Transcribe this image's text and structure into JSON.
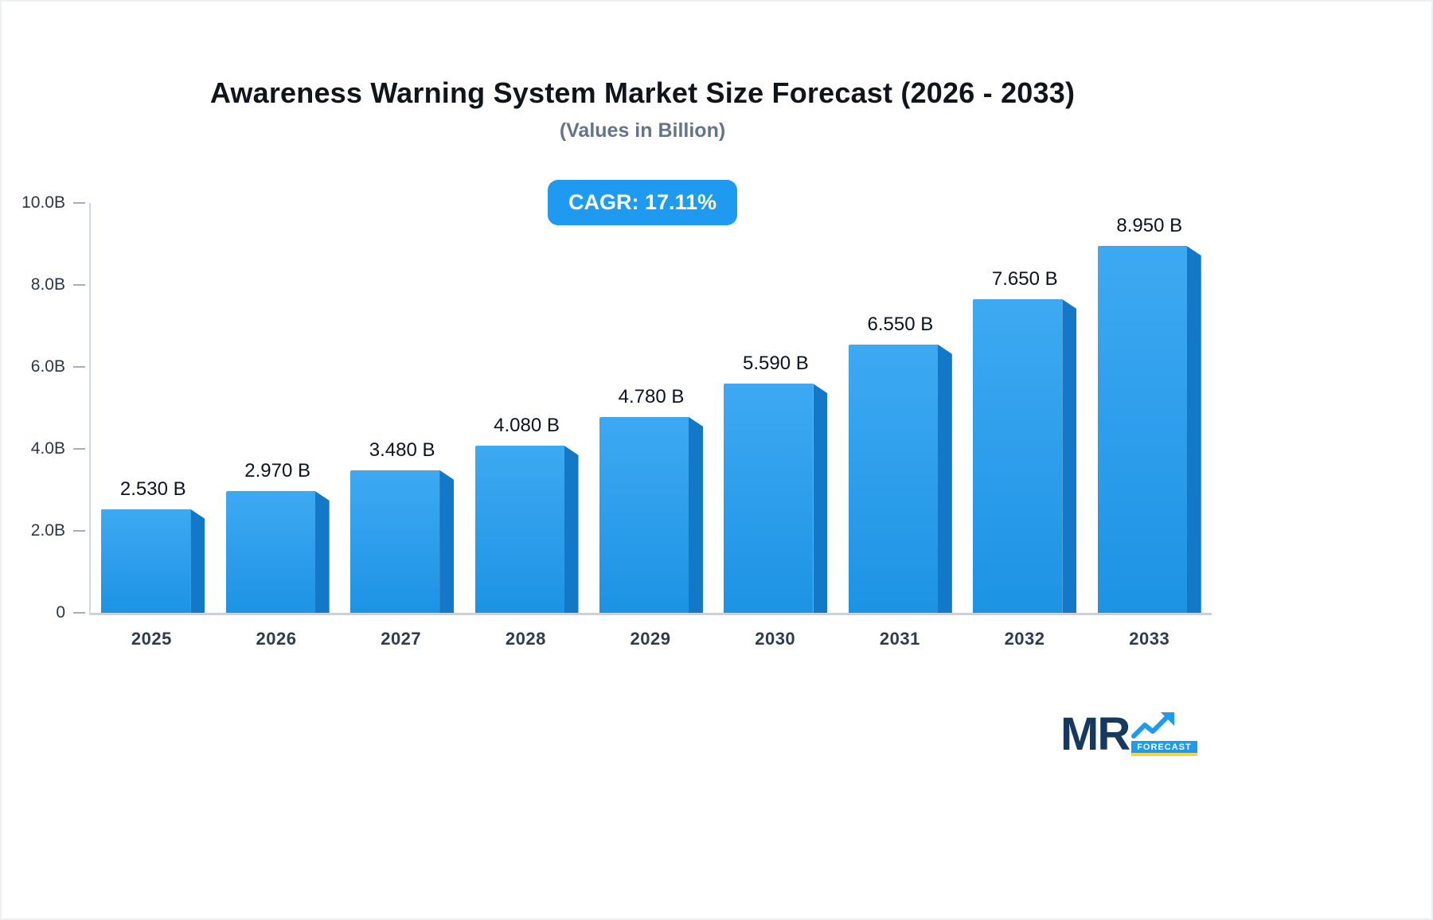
{
  "chart_data": {
    "type": "bar",
    "title": "Awareness Warning System Market Size Forecast (2026 - 2033)",
    "subtitle": "(Values in Billion)",
    "cagr_badge": "CAGR: 17.11%",
    "categories": [
      "2025",
      "2026",
      "2027",
      "2028",
      "2029",
      "2030",
      "2031",
      "2032",
      "2033"
    ],
    "values": [
      2.53,
      2.97,
      3.48,
      4.08,
      4.78,
      5.59,
      6.55,
      7.65,
      8.95
    ],
    "value_labels": [
      "2.530 B",
      "2.970 B",
      "3.480 B",
      "4.080 B",
      "4.780 B",
      "5.590 B",
      "6.550 B",
      "7.650 B",
      "8.950 B"
    ],
    "xlabel": "",
    "ylabel": "",
    "ylim": [
      0,
      10
    ],
    "y_ticks": [
      {
        "value": 10,
        "label": "10.0B"
      },
      {
        "value": 8,
        "label": "8.0B"
      },
      {
        "value": 6,
        "label": "6.0B"
      },
      {
        "value": 4,
        "label": "4.0B"
      },
      {
        "value": 2,
        "label": "2.0B"
      },
      {
        "value": 0,
        "label": "0"
      }
    ],
    "grid": false,
    "legend": "none",
    "colors": {
      "bar": "#1e9bf0",
      "bar_side": "#1478c8",
      "badge_bg": "#1e9bf0",
      "badge_text": "#ffffff",
      "accent_yellow": "#ffd23f"
    }
  },
  "logo": {
    "text": "MR",
    "sub": "FORECAST"
  }
}
